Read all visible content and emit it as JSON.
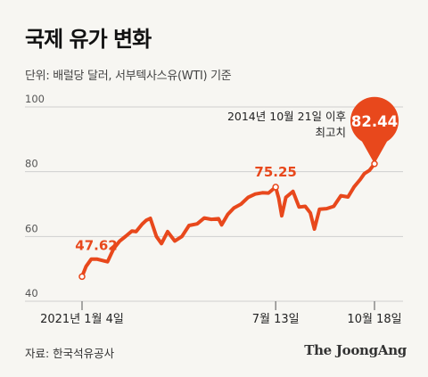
{
  "title": "국제 유가 변화",
  "subtitle": "단위: 배럴당 달러, 서부텍사스유(WTI) 기준",
  "source": "자료: 한국석유공사",
  "brand": "The JoongAng",
  "colors": {
    "line": "#e8481c",
    "grid": "#cfcfcf",
    "text": "#222222",
    "background": "#f7f6f2"
  },
  "chart_data": {
    "type": "line",
    "title": "국제 유가 변화",
    "ylabel": "배럴당 달러",
    "ylim": [
      40,
      100
    ],
    "yticks": [
      100,
      80,
      60,
      40
    ],
    "xticks": [
      {
        "label": "2021년 1월 4일",
        "date": "2021-01-04"
      },
      {
        "label": "7월 13일",
        "date": "2021-07-13"
      },
      {
        "label": "10월 18일",
        "date": "2021-10-18"
      }
    ],
    "grid": true,
    "series": [
      {
        "points": [
          [
            "2021-01-04",
            47.62
          ],
          [
            "2021-01-08",
            50.8
          ],
          [
            "2021-01-13",
            53.0
          ],
          [
            "2021-01-19",
            53.0
          ],
          [
            "2021-01-25",
            52.5
          ],
          [
            "2021-01-29",
            52.2
          ],
          [
            "2021-02-04",
            56.2
          ],
          [
            "2021-02-10",
            58.6
          ],
          [
            "2021-02-16",
            60.1
          ],
          [
            "2021-02-22",
            61.7
          ],
          [
            "2021-02-26",
            61.5
          ],
          [
            "2021-03-04",
            63.8
          ],
          [
            "2021-03-08",
            65.0
          ],
          [
            "2021-03-12",
            65.6
          ],
          [
            "2021-03-18",
            60.0
          ],
          [
            "2021-03-23",
            57.8
          ],
          [
            "2021-03-29",
            61.5
          ],
          [
            "2021-04-05",
            58.6
          ],
          [
            "2021-04-12",
            60.0
          ],
          [
            "2021-04-19",
            63.4
          ],
          [
            "2021-04-27",
            63.9
          ],
          [
            "2021-05-04",
            65.7
          ],
          [
            "2021-05-11",
            65.3
          ],
          [
            "2021-05-18",
            65.5
          ],
          [
            "2021-05-21",
            63.6
          ],
          [
            "2021-05-27",
            66.8
          ],
          [
            "2021-06-02",
            68.8
          ],
          [
            "2021-06-09",
            70.0
          ],
          [
            "2021-06-16",
            72.1
          ],
          [
            "2021-06-23",
            73.1
          ],
          [
            "2021-06-30",
            73.5
          ],
          [
            "2021-07-06",
            73.4
          ],
          [
            "2021-07-13",
            75.25
          ],
          [
            "2021-07-16",
            71.8
          ],
          [
            "2021-07-19",
            66.4
          ],
          [
            "2021-07-23",
            72.1
          ],
          [
            "2021-07-30",
            73.9
          ],
          [
            "2021-08-05",
            69.1
          ],
          [
            "2021-08-11",
            69.3
          ],
          [
            "2021-08-16",
            67.3
          ],
          [
            "2021-08-20",
            62.3
          ],
          [
            "2021-08-25",
            68.4
          ],
          [
            "2021-09-01",
            68.6
          ],
          [
            "2021-09-08",
            69.3
          ],
          [
            "2021-09-15",
            72.6
          ],
          [
            "2021-09-22",
            72.2
          ],
          [
            "2021-09-28",
            75.3
          ],
          [
            "2021-10-04",
            77.6
          ],
          [
            "2021-10-08",
            79.4
          ],
          [
            "2021-10-13",
            80.4
          ],
          [
            "2021-10-18",
            82.44
          ]
        ]
      }
    ],
    "annotations": [
      {
        "date": "2021-01-04",
        "value": 47.62,
        "label": "47.62"
      },
      {
        "date": "2021-07-13",
        "value": 75.25,
        "label": "75.25"
      },
      {
        "date": "2021-10-18",
        "value": 82.44,
        "label": "82.44"
      }
    ],
    "peak_note": [
      "2014년 10월 21일 이후",
      "최고치"
    ]
  }
}
